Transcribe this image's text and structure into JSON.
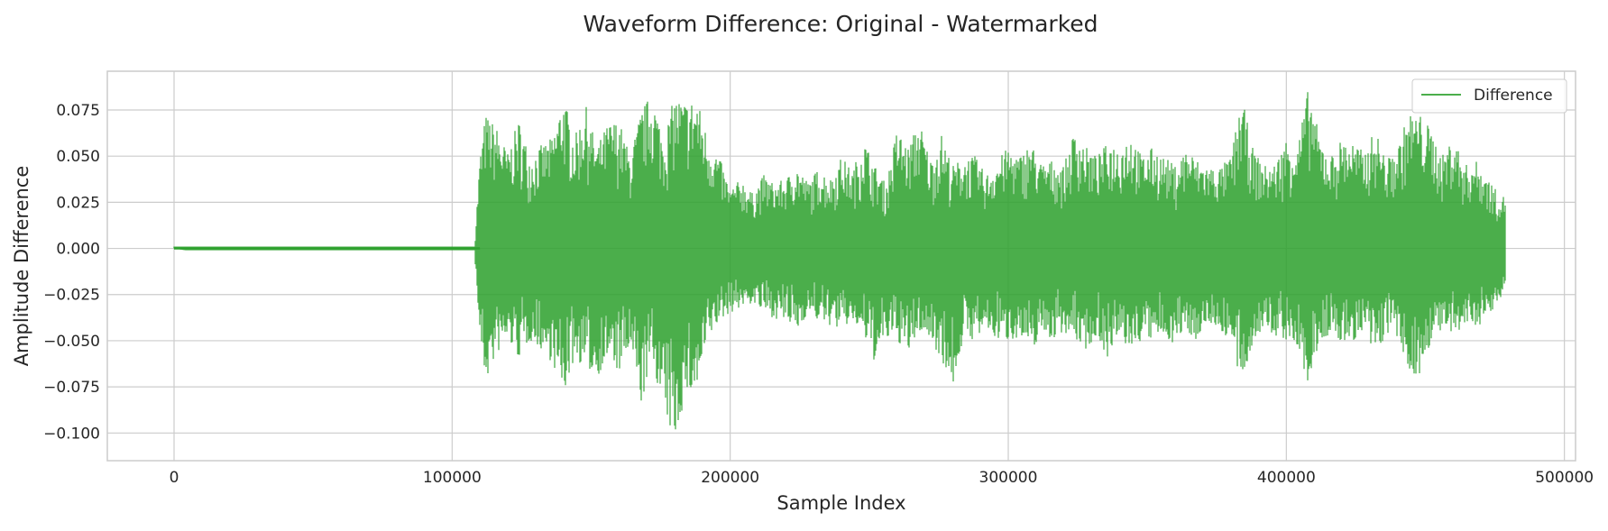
{
  "chart_data": {
    "type": "line",
    "title": "Waveform Difference: Original - Watermarked",
    "xlabel": "Sample Index",
    "ylabel": "Amplitude Difference",
    "xlim": [
      -24000,
      504000
    ],
    "ylim": [
      -0.115,
      0.096
    ],
    "x_ticks": [
      0,
      100000,
      200000,
      300000,
      400000,
      500000
    ],
    "x_tick_labels": [
      "0",
      "100000",
      "200000",
      "300000",
      "400000",
      "500000"
    ],
    "y_ticks": [
      0.075,
      0.05,
      0.025,
      0.0,
      -0.025,
      -0.05,
      -0.075,
      -0.1
    ],
    "y_tick_labels": [
      "0.075",
      "0.050",
      "0.025",
      "0.000",
      "−0.025",
      "−0.050",
      "−0.075",
      "−0.100"
    ],
    "grid": true,
    "legend_position": "top-right",
    "series": [
      {
        "name": "Difference",
        "color": "#2ca02c",
        "opacity": 0.85,
        "x_step": 4000,
        "x": [
          0,
          4000,
          8000,
          12000,
          16000,
          20000,
          24000,
          28000,
          32000,
          36000,
          40000,
          44000,
          48000,
          52000,
          56000,
          60000,
          64000,
          68000,
          72000,
          76000,
          80000,
          84000,
          88000,
          92000,
          96000,
          100000,
          104000,
          108000,
          110000,
          112000,
          116000,
          120000,
          124000,
          128000,
          132000,
          136000,
          140000,
          144000,
          148000,
          152000,
          156000,
          160000,
          164000,
          168000,
          172000,
          176000,
          180000,
          184000,
          188000,
          192000,
          196000,
          200000,
          204000,
          208000,
          212000,
          216000,
          220000,
          224000,
          228000,
          232000,
          236000,
          240000,
          244000,
          248000,
          252000,
          256000,
          260000,
          264000,
          268000,
          272000,
          276000,
          280000,
          284000,
          288000,
          292000,
          296000,
          300000,
          304000,
          308000,
          312000,
          316000,
          320000,
          324000,
          328000,
          332000,
          336000,
          340000,
          344000,
          348000,
          352000,
          356000,
          360000,
          364000,
          368000,
          372000,
          376000,
          380000,
          384000,
          388000,
          392000,
          396000,
          400000,
          404000,
          408000,
          412000,
          416000,
          420000,
          424000,
          428000,
          432000,
          436000,
          440000,
          444000,
          448000,
          452000,
          456000,
          460000,
          464000,
          468000,
          472000,
          476000,
          479000
        ],
        "upper": [
          0.001,
          0.001,
          0.001,
          0.001,
          0.001,
          0.001,
          0.001,
          0.001,
          0.001,
          0.001,
          0.001,
          0.001,
          0.001,
          0.001,
          0.001,
          0.001,
          0.001,
          0.001,
          0.001,
          0.001,
          0.001,
          0.001,
          0.001,
          0.001,
          0.001,
          0.001,
          0.001,
          0.001,
          0.05,
          0.073,
          0.066,
          0.052,
          0.07,
          0.05,
          0.056,
          0.06,
          0.083,
          0.06,
          0.078,
          0.055,
          0.068,
          0.07,
          0.05,
          0.075,
          0.085,
          0.06,
          0.083,
          0.08,
          0.082,
          0.06,
          0.05,
          0.032,
          0.038,
          0.03,
          0.04,
          0.035,
          0.038,
          0.045,
          0.036,
          0.044,
          0.038,
          0.05,
          0.042,
          0.06,
          0.045,
          0.035,
          0.065,
          0.055,
          0.07,
          0.048,
          0.062,
          0.045,
          0.05,
          0.05,
          0.04,
          0.048,
          0.055,
          0.05,
          0.058,
          0.046,
          0.048,
          0.045,
          0.065,
          0.055,
          0.05,
          0.058,
          0.056,
          0.063,
          0.05,
          0.055,
          0.05,
          0.045,
          0.055,
          0.048,
          0.045,
          0.044,
          0.05,
          0.082,
          0.054,
          0.045,
          0.046,
          0.06,
          0.056,
          0.088,
          0.06,
          0.05,
          0.06,
          0.058,
          0.052,
          0.065,
          0.048,
          0.055,
          0.074,
          0.073,
          0.065,
          0.05,
          0.062,
          0.045,
          0.048,
          0.04,
          0.03,
          0.028
        ],
        "lower": [
          0.0,
          -0.001,
          -0.001,
          -0.001,
          -0.001,
          -0.001,
          -0.001,
          -0.001,
          -0.001,
          -0.001,
          -0.001,
          -0.001,
          -0.001,
          -0.001,
          -0.001,
          -0.001,
          -0.001,
          -0.001,
          -0.001,
          -0.001,
          -0.001,
          -0.001,
          -0.001,
          -0.001,
          -0.001,
          -0.001,
          -0.001,
          -0.001,
          -0.049,
          -0.073,
          -0.058,
          -0.05,
          -0.06,
          -0.05,
          -0.055,
          -0.062,
          -0.08,
          -0.06,
          -0.065,
          -0.07,
          -0.06,
          -0.068,
          -0.055,
          -0.085,
          -0.06,
          -0.09,
          -0.105,
          -0.08,
          -0.078,
          -0.05,
          -0.04,
          -0.035,
          -0.032,
          -0.03,
          -0.035,
          -0.038,
          -0.04,
          -0.045,
          -0.035,
          -0.04,
          -0.042,
          -0.044,
          -0.04,
          -0.048,
          -0.062,
          -0.05,
          -0.05,
          -0.058,
          -0.045,
          -0.05,
          -0.06,
          -0.076,
          -0.048,
          -0.05,
          -0.045,
          -0.05,
          -0.05,
          -0.048,
          -0.058,
          -0.045,
          -0.05,
          -0.045,
          -0.05,
          -0.055,
          -0.048,
          -0.06,
          -0.05,
          -0.055,
          -0.05,
          -0.05,
          -0.048,
          -0.052,
          -0.045,
          -0.05,
          -0.04,
          -0.045,
          -0.05,
          -0.078,
          -0.05,
          -0.045,
          -0.048,
          -0.05,
          -0.055,
          -0.076,
          -0.05,
          -0.048,
          -0.052,
          -0.05,
          -0.048,
          -0.06,
          -0.046,
          -0.05,
          -0.068,
          -0.07,
          -0.05,
          -0.045,
          -0.05,
          -0.043,
          -0.042,
          -0.04,
          -0.03,
          -0.02
        ]
      }
    ]
  }
}
